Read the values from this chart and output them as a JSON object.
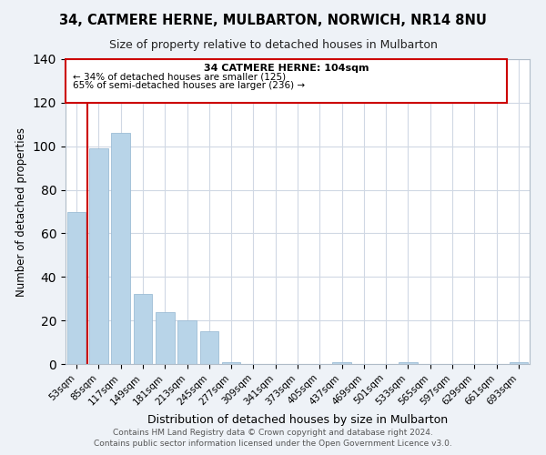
{
  "title": "34, CATMERE HERNE, MULBARTON, NORWICH, NR14 8NU",
  "subtitle": "Size of property relative to detached houses in Mulbarton",
  "xlabel": "Distribution of detached houses by size in Mulbarton",
  "ylabel": "Number of detached properties",
  "bar_color": "#b8d4e8",
  "bar_edge_color": "#9dbdd6",
  "annotation_line_color": "#cc0000",
  "annotation_box_edge": "#cc0000",
  "categories": [
    "53sqm",
    "85sqm",
    "117sqm",
    "149sqm",
    "181sqm",
    "213sqm",
    "245sqm",
    "277sqm",
    "309sqm",
    "341sqm",
    "373sqm",
    "405sqm",
    "437sqm",
    "469sqm",
    "501sqm",
    "533sqm",
    "565sqm",
    "597sqm",
    "629sqm",
    "661sqm",
    "693sqm"
  ],
  "values": [
    70,
    99,
    106,
    32,
    24,
    20,
    15,
    1,
    0,
    0,
    0,
    0,
    1,
    0,
    0,
    1,
    0,
    0,
    0,
    0,
    1
  ],
  "ylim": [
    0,
    140
  ],
  "yticks": [
    0,
    20,
    40,
    60,
    80,
    100,
    120,
    140
  ],
  "annotation_text_line1": "34 CATMERE HERNE: 104sqm",
  "annotation_text_line2": "← 34% of detached houses are smaller (125)",
  "annotation_text_line3": "65% of semi-detached houses are larger (236) →",
  "footer_line1": "Contains HM Land Registry data © Crown copyright and database right 2024.",
  "footer_line2": "Contains public sector information licensed under the Open Government Licence v3.0.",
  "background_color": "#eef2f7",
  "plot_bg_color": "#ffffff",
  "grid_color": "#d0d8e4"
}
